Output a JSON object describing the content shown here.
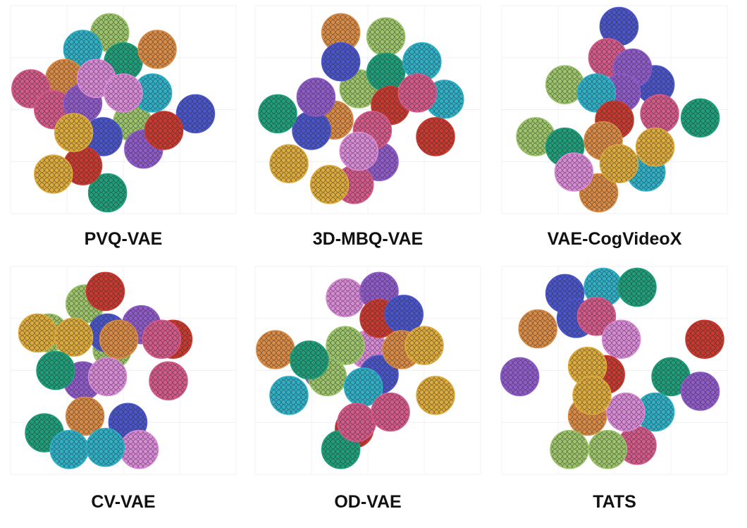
{
  "chart_data": [
    {
      "type": "scatter",
      "title": "PVQ-VAE",
      "xlim": [
        0,
        100
      ],
      "ylim": [
        0,
        100
      ],
      "series": [
        {
          "color": "#9cc46a",
          "x": [
            44,
            54
          ],
          "y": [
            87,
            44
          ]
        },
        {
          "color": "#1f9e7a",
          "x": [
            50,
            43
          ],
          "y": [
            73,
            10
          ]
        },
        {
          "color": "#2fb0c6",
          "x": [
            32,
            63
          ],
          "y": [
            79,
            58
          ]
        },
        {
          "color": "#d98b45",
          "x": [
            65,
            24
          ],
          "y": [
            79,
            65
          ]
        },
        {
          "color": "#d45a8a",
          "x": [
            9,
            19
          ],
          "y": [
            60,
            50
          ]
        },
        {
          "color": "#8e5bc8",
          "x": [
            32,
            59
          ],
          "y": [
            53,
            31
          ]
        },
        {
          "color": "#d88ad6",
          "x": [
            38,
            50
          ],
          "y": [
            65,
            58
          ]
        },
        {
          "color": "#4a55c9",
          "x": [
            41,
            82
          ],
          "y": [
            37,
            48
          ]
        },
        {
          "color": "#c83a30",
          "x": [
            68,
            32
          ],
          "y": [
            40,
            23
          ]
        },
        {
          "color": "#dcab3c",
          "x": [
            28,
            19
          ],
          "y": [
            39,
            19
          ]
        }
      ]
    },
    {
      "type": "scatter",
      "title": "3D-MBQ-VAE",
      "xlim": [
        0,
        100
      ],
      "ylim": [
        0,
        100
      ],
      "series": [
        {
          "color": "#d98b45",
          "x": [
            38,
            35
          ],
          "y": [
            87,
            45
          ]
        },
        {
          "color": "#9cc46a",
          "x": [
            58,
            46
          ],
          "y": [
            85,
            60
          ]
        },
        {
          "color": "#4a55c9",
          "x": [
            38,
            25
          ],
          "y": [
            73,
            40
          ]
        },
        {
          "color": "#1f9e7a",
          "x": [
            58,
            10
          ],
          "y": [
            68,
            48
          ]
        },
        {
          "color": "#2fb0c6",
          "x": [
            74,
            84
          ],
          "y": [
            73,
            55
          ]
        },
        {
          "color": "#8e5bc8",
          "x": [
            27,
            55
          ],
          "y": [
            56,
            25
          ]
        },
        {
          "color": "#c83a30",
          "x": [
            60,
            80
          ],
          "y": [
            52,
            37
          ]
        },
        {
          "color": "#d45a8a",
          "x": [
            72,
            52,
            44
          ],
          "y": [
            58,
            40,
            14
          ]
        },
        {
          "color": "#d88ad6",
          "x": [
            46
          ],
          "y": [
            30
          ]
        },
        {
          "color": "#dcab3c",
          "x": [
            15,
            33
          ],
          "y": [
            24,
            14
          ]
        }
      ]
    },
    {
      "type": "scatter",
      "title": "VAE-CogVideoX",
      "xlim": [
        0,
        100
      ],
      "ylim": [
        0,
        100
      ],
      "series": [
        {
          "color": "#4a55c9",
          "x": [
            52,
            68
          ],
          "y": [
            90,
            62
          ]
        },
        {
          "color": "#d45a8a",
          "x": [
            47,
            70
          ],
          "y": [
            75,
            48
          ]
        },
        {
          "color": "#8e5bc8",
          "x": [
            58,
            53
          ],
          "y": [
            70,
            58
          ]
        },
        {
          "color": "#9cc46a",
          "x": [
            28,
            15
          ],
          "y": [
            62,
            37
          ]
        },
        {
          "color": "#2fb0c6",
          "x": [
            42,
            64
          ],
          "y": [
            58,
            20
          ]
        },
        {
          "color": "#1f9e7a",
          "x": [
            88,
            28
          ],
          "y": [
            46,
            32
          ]
        },
        {
          "color": "#c83a30",
          "x": [
            50
          ],
          "y": [
            45
          ]
        },
        {
          "color": "#d98b45",
          "x": [
            45,
            43
          ],
          "y": [
            35,
            10
          ]
        },
        {
          "color": "#d88ad6",
          "x": [
            32
          ],
          "y": [
            20
          ]
        },
        {
          "color": "#dcab3c",
          "x": [
            52,
            68
          ],
          "y": [
            24,
            32
          ]
        }
      ]
    },
    {
      "type": "scatter",
      "title": "CV-VAE",
      "xlim": [
        0,
        100
      ],
      "ylim": [
        0,
        100
      ],
      "series": [
        {
          "color": "#9cc46a",
          "x": [
            33,
            45,
            17
          ],
          "y": [
            82,
            60,
            68
          ]
        },
        {
          "color": "#c83a30",
          "x": [
            42,
            72
          ],
          "y": [
            88,
            65
          ]
        },
        {
          "color": "#4a55c9",
          "x": [
            43,
            52
          ],
          "y": [
            68,
            25
          ]
        },
        {
          "color": "#8e5bc8",
          "x": [
            58,
            32
          ],
          "y": [
            72,
            45
          ]
        },
        {
          "color": "#d98b45",
          "x": [
            48,
            33
          ],
          "y": [
            65,
            28
          ]
        },
        {
          "color": "#dcab3c",
          "x": [
            12,
            28
          ],
          "y": [
            68,
            66
          ]
        },
        {
          "color": "#d88ad6",
          "x": [
            43,
            57
          ],
          "y": [
            47,
            12
          ]
        },
        {
          "color": "#d45a8a",
          "x": [
            67,
            70
          ],
          "y": [
            65,
            45
          ]
        },
        {
          "color": "#1f9e7a",
          "x": [
            20,
            15
          ],
          "y": [
            50,
            20
          ]
        },
        {
          "color": "#2fb0c6",
          "x": [
            26,
            42
          ],
          "y": [
            12,
            13
          ]
        }
      ]
    },
    {
      "type": "scatter",
      "title": "OD-VAE",
      "xlim": [
        0,
        100
      ],
      "ylim": [
        0,
        100
      ],
      "series": [
        {
          "color": "#d88ad6",
          "x": [
            40,
            50
          ],
          "y": [
            85,
            60
          ]
        },
        {
          "color": "#8e5bc8",
          "x": [
            55,
            30
          ],
          "y": [
            88,
            50
          ]
        },
        {
          "color": "#c83a30",
          "x": [
            55,
            44
          ],
          "y": [
            75,
            22
          ]
        },
        {
          "color": "#4a55c9",
          "x": [
            66,
            55
          ],
          "y": [
            77,
            48
          ]
        },
        {
          "color": "#9cc46a",
          "x": [
            40,
            32
          ],
          "y": [
            62,
            47
          ]
        },
        {
          "color": "#d98b45",
          "x": [
            9,
            65
          ],
          "y": [
            60,
            60
          ]
        },
        {
          "color": "#dcab3c",
          "x": [
            75,
            80
          ],
          "y": [
            62,
            38
          ]
        },
        {
          "color": "#1f9e7a",
          "x": [
            24,
            38
          ],
          "y": [
            55,
            12
          ]
        },
        {
          "color": "#2fb0c6",
          "x": [
            15,
            48
          ],
          "y": [
            38,
            42
          ]
        },
        {
          "color": "#d45a8a",
          "x": [
            45,
            60
          ],
          "y": [
            25,
            30
          ]
        }
      ]
    },
    {
      "type": "scatter",
      "title": "TATS",
      "xlim": [
        0,
        100
      ],
      "ylim": [
        0,
        100
      ],
      "series": [
        {
          "color": "#4a55c9",
          "x": [
            28,
            33
          ],
          "y": [
            87,
            75
          ]
        },
        {
          "color": "#2fb0c6",
          "x": [
            45,
            68
          ],
          "y": [
            90,
            30
          ]
        },
        {
          "color": "#1f9e7a",
          "x": [
            60,
            75
          ],
          "y": [
            90,
            47
          ]
        },
        {
          "color": "#d98b45",
          "x": [
            16,
            38
          ],
          "y": [
            70,
            28
          ]
        },
        {
          "color": "#d45a8a",
          "x": [
            42,
            60
          ],
          "y": [
            76,
            14
          ]
        },
        {
          "color": "#d88ad6",
          "x": [
            53,
            55
          ],
          "y": [
            65,
            30
          ]
        },
        {
          "color": "#8e5bc8",
          "x": [
            8,
            88
          ],
          "y": [
            47,
            40
          ]
        },
        {
          "color": "#c83a30",
          "x": [
            90,
            46
          ],
          "y": [
            65,
            48
          ]
        },
        {
          "color": "#dcab3c",
          "x": [
            38,
            40
          ],
          "y": [
            52,
            38
          ]
        },
        {
          "color": "#9cc46a",
          "x": [
            30,
            47
          ],
          "y": [
            12,
            12
          ]
        }
      ]
    }
  ]
}
